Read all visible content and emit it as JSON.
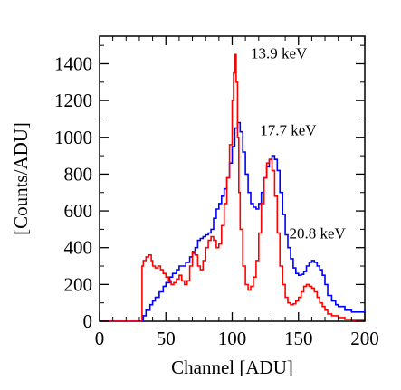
{
  "chart_data": {
    "type": "line",
    "xlabel": "Channel [ADU]",
    "ylabel": "[Counts/ADU]",
    "xlim": [
      0,
      200
    ],
    "ylim": [
      0,
      1550
    ],
    "x_ticks": [
      0,
      50,
      100,
      150,
      200
    ],
    "y_ticks": [
      0,
      200,
      400,
      600,
      800,
      1000,
      1200,
      1400
    ],
    "grid": false,
    "annotations": [
      {
        "text": "13.9 keV",
        "x": 114,
        "y": 1430
      },
      {
        "text": "17.7 keV",
        "x": 121,
        "y": 1010
      },
      {
        "text": "20.8 keV",
        "x": 143,
        "y": 450
      }
    ],
    "series": [
      {
        "color": "#0000ff",
        "x": [
          0,
          30,
          33,
          35,
          38,
          40,
          42,
          45,
          48,
          50,
          53,
          55,
          58,
          60,
          63,
          65,
          68,
          70,
          72,
          74,
          76,
          78,
          80,
          82,
          84,
          86,
          88,
          90,
          92,
          94,
          96,
          98,
          100,
          102,
          104,
          106,
          108,
          110,
          112,
          114,
          116,
          118,
          120,
          122,
          124,
          126,
          128,
          130,
          132,
          134,
          136,
          138,
          140,
          142,
          144,
          146,
          148,
          150,
          152,
          154,
          156,
          158,
          160,
          162,
          164,
          166,
          168,
          170,
          172,
          175,
          178,
          180,
          185,
          190,
          195,
          200
        ],
        "y": [
          0,
          0,
          30,
          60,
          90,
          110,
          130,
          160,
          190,
          210,
          240,
          260,
          280,
          300,
          300,
          320,
          350,
          370,
          400,
          440,
          450,
          460,
          470,
          480,
          500,
          560,
          610,
          640,
          680,
          720,
          780,
          860,
          950,
          1050,
          1080,
          1030,
          920,
          800,
          700,
          640,
          620,
          610,
          640,
          700,
          780,
          840,
          880,
          900,
          880,
          820,
          700,
          580,
          470,
          400,
          340,
          290,
          260,
          250,
          255,
          270,
          300,
          320,
          330,
          320,
          300,
          280,
          250,
          200,
          140,
          110,
          90,
          80,
          60,
          50,
          50,
          60
        ]
      },
      {
        "color": "#ff0000",
        "x": [
          0,
          31,
          32,
          33,
          35,
          37,
          39,
          40,
          42,
          44,
          46,
          48,
          50,
          52,
          54,
          56,
          58,
          60,
          62,
          64,
          66,
          68,
          70,
          72,
          74,
          76,
          78,
          80,
          82,
          84,
          86,
          88,
          90,
          92,
          94,
          96,
          98,
          100,
          101,
          102,
          103,
          104,
          105,
          106,
          108,
          110,
          112,
          114,
          116,
          118,
          120,
          122,
          124,
          126,
          128,
          130,
          132,
          134,
          136,
          138,
          140,
          142,
          144,
          146,
          148,
          150,
          152,
          154,
          156,
          158,
          160,
          162,
          164,
          166,
          168,
          170,
          172,
          175,
          180,
          185,
          190,
          200
        ],
        "y": [
          0,
          0,
          300,
          330,
          350,
          360,
          330,
          300,
          290,
          300,
          280,
          260,
          240,
          220,
          200,
          210,
          230,
          250,
          220,
          200,
          220,
          300,
          380,
          360,
          300,
          280,
          330,
          400,
          440,
          460,
          440,
          400,
          420,
          520,
          640,
          780,
          960,
          1200,
          1350,
          1450,
          1300,
          1000,
          700,
          500,
          300,
          200,
          170,
          190,
          240,
          330,
          480,
          640,
          780,
          860,
          880,
          820,
          680,
          480,
          300,
          200,
          130,
          100,
          90,
          95,
          110,
          130,
          160,
          190,
          200,
          190,
          180,
          160,
          130,
          100,
          80,
          60,
          40,
          30,
          20,
          10,
          5,
          0
        ]
      }
    ]
  }
}
